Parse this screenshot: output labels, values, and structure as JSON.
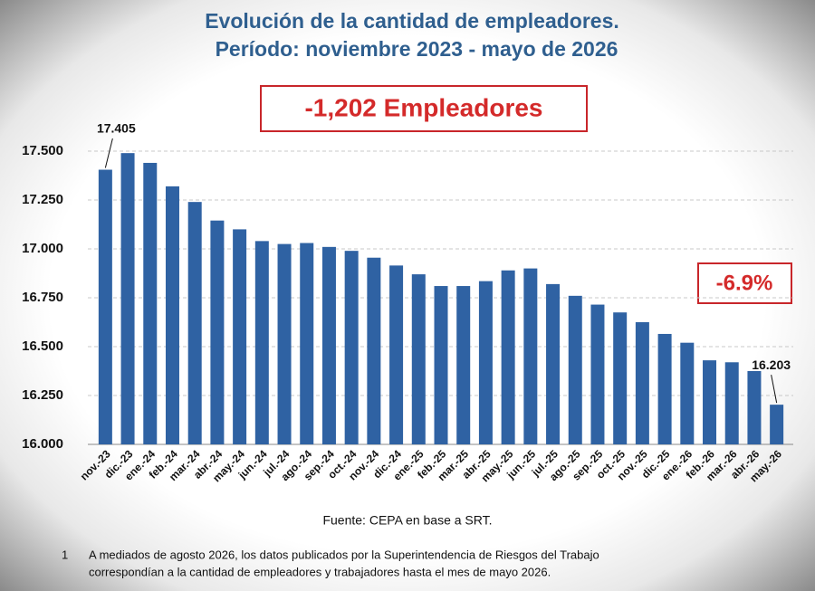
{
  "chart_data": {
    "type": "bar",
    "title": "Evolución de la cantidad de empleadores.",
    "subtitle": "Período: noviembre 2023 - mayo de 2026",
    "annotations": [
      "-1,202 Empleadores",
      "-6.9%"
    ],
    "source": "Fuente: CEPA en base a SRT.",
    "footnote": {
      "number": "1",
      "text": [
        "A mediados de agosto 2026, los datos publicados por la Superintendencia de Riesgos del Trabajo",
        "correspondían a la cantidad de empleadores y trabajadores hasta el mes de mayo 2026."
      ]
    },
    "categories": [
      "nov.-23",
      "dic.-23",
      "ene.-24",
      "feb.-24",
      "mar.-24",
      "abr.-24",
      "may.-24",
      "jun.-24",
      "jul.-24",
      "ago.-24",
      "sep.-24",
      "oct.-24",
      "nov.-24",
      "dic.-24",
      "ene.-25",
      "feb.-25",
      "mar.-25",
      "abr.-25",
      "may.-25",
      "jun.-25",
      "jul.-25",
      "ago.-25",
      "sep.-25",
      "oct.-25",
      "nov.-25",
      "dic.-25",
      "ene.-26",
      "feb.-26",
      "mar.-26",
      "abr.-26",
      "may.-26"
    ],
    "values": [
      17405,
      17490,
      17440,
      17320,
      17240,
      17145,
      17100,
      17040,
      17025,
      17030,
      17010,
      16990,
      16955,
      16915,
      16870,
      16810,
      16810,
      16835,
      16890,
      16900,
      16820,
      16760,
      16715,
      16675,
      16625,
      16565,
      16520,
      16430,
      16420,
      16375,
      16203
    ],
    "value_labels": [
      "17.405",
      null,
      null,
      null,
      null,
      null,
      null,
      null,
      null,
      null,
      null,
      null,
      null,
      null,
      null,
      null,
      null,
      null,
      null,
      null,
      null,
      null,
      null,
      null,
      null,
      null,
      null,
      null,
      null,
      null,
      "16.203"
    ],
    "color": "#2f62a3",
    "ylim": [
      16000,
      17500
    ],
    "yticks": [
      {
        "value": 16000,
        "label": "16.000"
      },
      {
        "value": 16250,
        "label": "16.250"
      },
      {
        "value": 16500,
        "label": "16.500"
      },
      {
        "value": 16750,
        "label": "16.750"
      },
      {
        "value": 17000,
        "label": "17.000"
      },
      {
        "value": 17250,
        "label": "17.250"
      },
      {
        "value": 17500,
        "label": "17.500"
      }
    ],
    "grid": true
  }
}
